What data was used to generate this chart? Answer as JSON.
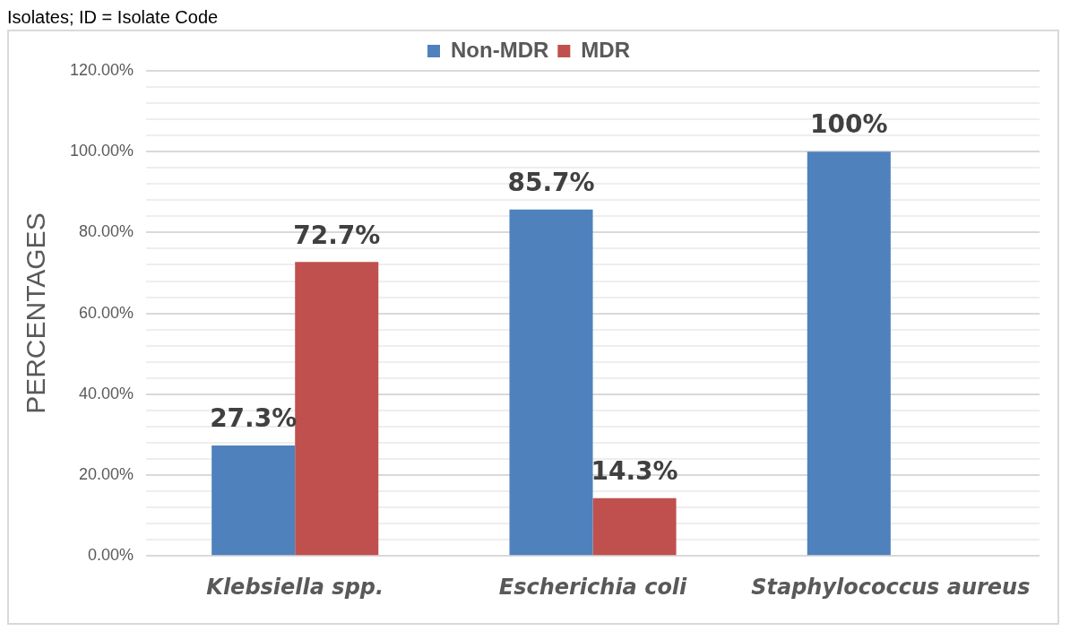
{
  "chart_data": {
    "type": "bar",
    "annotations": [
      "Isolates; ID = Isolate Code"
    ],
    "ylabel": "PERCENTAGES",
    "categories": [
      "Klebsiella spp.",
      "Escherichia coli",
      "Staphylococcus aureus"
    ],
    "series": [
      {
        "name": "Non-MDR",
        "color": "#4f81bd",
        "values": [
          27.3,
          85.7,
          100
        ],
        "value_labels": [
          "27.3%",
          "85.7%",
          "100%"
        ]
      },
      {
        "name": "MDR",
        "color": "#c0504d",
        "values": [
          72.7,
          14.3,
          0
        ],
        "value_labels": [
          "72.7%",
          "14.3%",
          null
        ]
      }
    ],
    "ylim": [
      0,
      120
    ],
    "yticks": [
      {
        "value": 0,
        "label": "0.00%"
      },
      {
        "value": 4,
        "label": null
      },
      {
        "value": 8,
        "label": null
      },
      {
        "value": 12,
        "label": null
      },
      {
        "value": 16,
        "label": null
      },
      {
        "value": 20,
        "label": "20.00%"
      },
      {
        "value": 24,
        "label": null
      },
      {
        "value": 28,
        "label": null
      },
      {
        "value": 32,
        "label": null
      },
      {
        "value": 36,
        "label": null
      },
      {
        "value": 40,
        "label": "40.00%"
      },
      {
        "value": 44,
        "label": null
      },
      {
        "value": 48,
        "label": null
      },
      {
        "value": 52,
        "label": null
      },
      {
        "value": 56,
        "label": null
      },
      {
        "value": 60,
        "label": "60.00%"
      },
      {
        "value": 64,
        "label": null
      },
      {
        "value": 68,
        "label": null
      },
      {
        "value": 72,
        "label": null
      },
      {
        "value": 76,
        "label": null
      },
      {
        "value": 80,
        "label": "80.00%"
      },
      {
        "value": 84,
        "label": null
      },
      {
        "value": 88,
        "label": null
      },
      {
        "value": 92,
        "label": null
      },
      {
        "value": 96,
        "label": null
      },
      {
        "value": 100,
        "label": "100.00%"
      },
      {
        "value": 104,
        "label": null
      },
      {
        "value": 108,
        "label": null
      },
      {
        "value": 112,
        "label": null
      },
      {
        "value": 116,
        "label": null
      },
      {
        "value": 120,
        "label": "120.00%"
      }
    ],
    "grid": "y",
    "legend": "top"
  }
}
